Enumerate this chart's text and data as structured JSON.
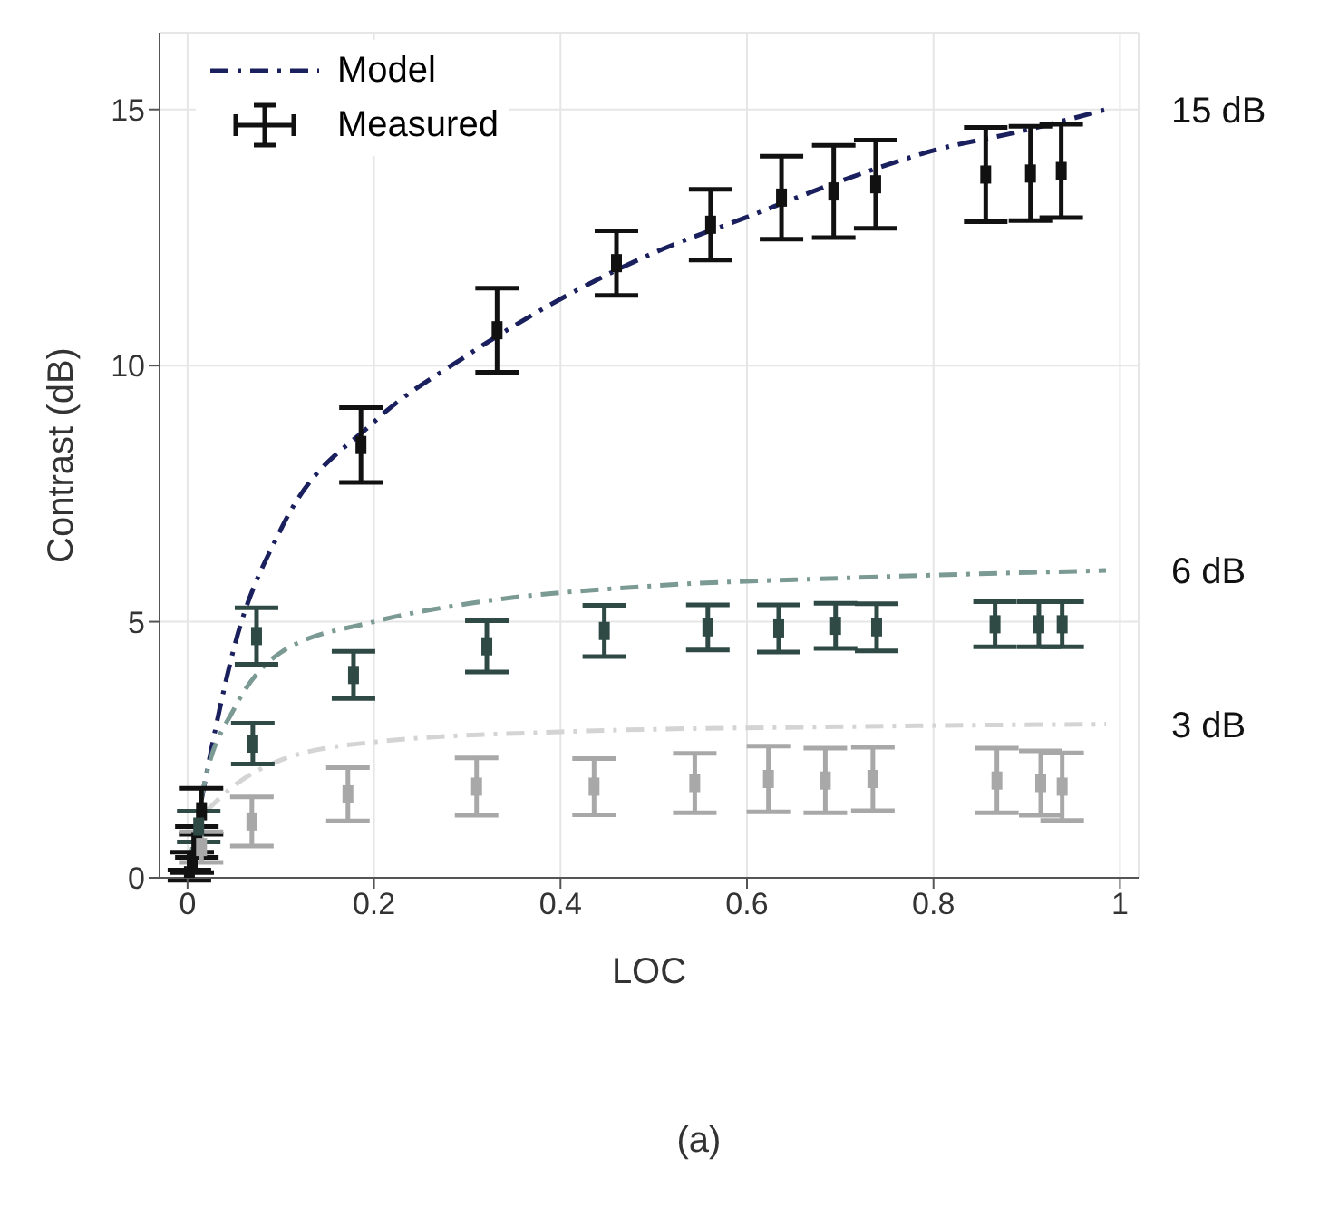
{
  "chart_data": {
    "type": "scatter",
    "xlabel": "LOC",
    "ylabel": "Contrast (dB)",
    "xlim": [
      -0.03,
      1.02
    ],
    "ylim": [
      0,
      16.5
    ],
    "xticks": [
      0,
      0.2,
      0.4,
      0.6,
      0.8,
      1
    ],
    "yticks": [
      0,
      5,
      10,
      15
    ],
    "grid": true,
    "legend": "top left",
    "marker": "square",
    "series": [
      {
        "type": "line",
        "name": "Model",
        "color": "#1a1f5e",
        "line_style": "dashdot",
        "marker": "none",
        "x": [
          0,
          0.02,
          0.05,
          0.1,
          0.2,
          0.3,
          0.4,
          0.5,
          0.6,
          0.7,
          0.8,
          0.9,
          0.985
        ],
        "values": [
          0,
          2,
          4.5,
          6.8,
          8.9,
          10.2,
          11.3,
          12.2,
          12.9,
          13.6,
          14.2,
          14.6,
          15
        ]
      },
      {
        "type": "line",
        "color": "#7a9a93",
        "line_style": "dashdot",
        "marker": "none",
        "x": [
          0,
          0.02,
          0.05,
          0.1,
          0.2,
          0.3,
          0.5,
          0.7,
          0.985
        ],
        "values": [
          0,
          2,
          3.3,
          4.4,
          5,
          5.35,
          5.7,
          5.85,
          6
        ]
      },
      {
        "type": "line",
        "color": "#d4d4d4",
        "line_style": "dashdot",
        "marker": "none",
        "x": [
          0.02,
          0.05,
          0.1,
          0.2,
          0.4,
          0.7,
          0.985
        ],
        "values": [
          1.3,
          1.8,
          2.3,
          2.65,
          2.85,
          2.95,
          3
        ]
      },
      {
        "name": "Measured",
        "color": "#111111",
        "x": [
          0.002,
          0.005,
          0.01,
          0.015,
          0.186,
          0.332,
          0.46,
          0.561,
          0.637,
          0.693,
          0.738,
          0.856,
          0.904,
          0.937
        ],
        "values": [
          0.05,
          0.3,
          0.7,
          1.3,
          8.45,
          10.69,
          12,
          12.75,
          13.28,
          13.4,
          13.54,
          13.73,
          13.75,
          13.8
        ],
        "errors": [
          0.1,
          0.2,
          0.3,
          0.45,
          0.73,
          0.82,
          0.63,
          0.69,
          0.81,
          0.9,
          0.86,
          0.92,
          0.92,
          0.91
        ]
      },
      {
        "color": "#2f4a45",
        "x": [
          0.012,
          0.07,
          0.074,
          0.178,
          0.321,
          0.447,
          0.558,
          0.634,
          0.695,
          0.739,
          0.866,
          0.913,
          0.938
        ],
        "values": [
          1,
          2.62,
          4.72,
          3.96,
          4.52,
          4.82,
          4.89,
          4.87,
          4.92,
          4.89,
          4.95,
          4.95,
          4.95
        ],
        "errors": [
          0.3,
          0.4,
          0.55,
          0.46,
          0.5,
          0.5,
          0.44,
          0.46,
          0.44,
          0.46,
          0.44,
          0.44,
          0.44
        ]
      },
      {
        "color": "#a8a8a8",
        "x": [
          0.015,
          0.069,
          0.172,
          0.31,
          0.436,
          0.544,
          0.623,
          0.684,
          0.735,
          0.868,
          0.915,
          0.938
        ],
        "values": [
          0.6,
          1.1,
          1.63,
          1.78,
          1.78,
          1.85,
          1.93,
          1.9,
          1.93,
          1.9,
          1.85,
          1.78
        ],
        "errors": [
          0.3,
          0.48,
          0.52,
          0.56,
          0.55,
          0.58,
          0.64,
          0.63,
          0.62,
          0.63,
          0.63,
          0.66
        ]
      }
    ],
    "annotations": [
      "15 dB",
      "6 dB",
      "3 dB",
      "(a)"
    ]
  }
}
